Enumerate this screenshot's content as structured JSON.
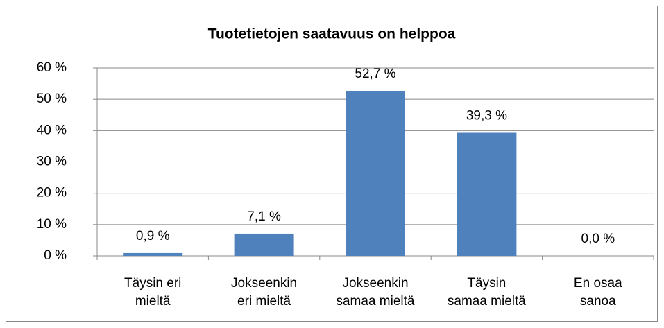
{
  "chart_data": {
    "type": "bar",
    "title": "Tuotetietojen saatavuus on helppoa",
    "categories": [
      "Täysin eri\nmieltä",
      "Jokseenkin\neri mieltä",
      "Jokseenkin\nsamaa mieltä",
      "Täysin\nsamaa mieltä",
      "En osaa\nsanoa"
    ],
    "values": [
      0.9,
      7.1,
      52.7,
      39.3,
      0.0
    ],
    "value_labels": [
      "0,9 %",
      "7,1 %",
      "52,7 %",
      "39,3 %",
      "0,0 %"
    ],
    "color": "#4f81bd",
    "ylim": [
      0,
      60
    ],
    "yticks": [
      {
        "value": 0,
        "label": "0 %"
      },
      {
        "value": 10,
        "label": "10 %"
      },
      {
        "value": 20,
        "label": "20 %"
      },
      {
        "value": 30,
        "label": "30 %"
      },
      {
        "value": 40,
        "label": "40 %"
      },
      {
        "value": 50,
        "label": "50 %"
      },
      {
        "value": 60,
        "label": "60 %"
      }
    ],
    "grid": true
  }
}
